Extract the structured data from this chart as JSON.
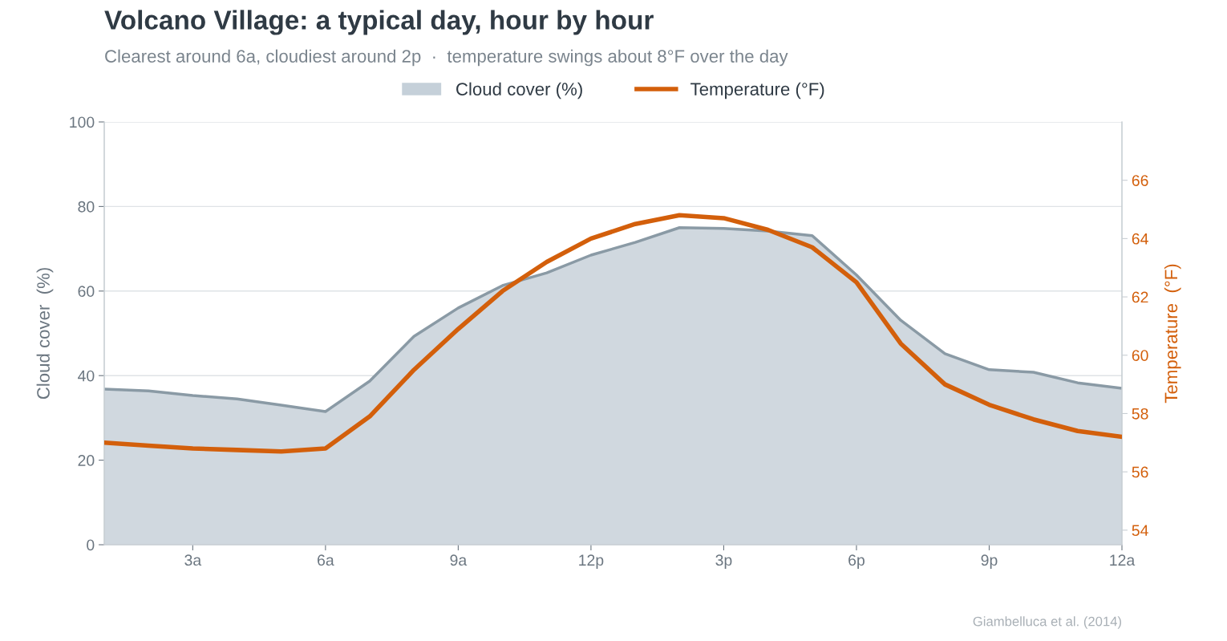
{
  "chart_data": {
    "type": "line",
    "title": "Volcano Village: a typical day, hour by hour",
    "subtitle": "Clearest around 6a, cloudiest around 2p  ·  temperature swings about 8°F over the day",
    "ylabel": "Cloud cover  (%)",
    "y2label": "Temperature  (°F)",
    "categories": [
      null,
      null,
      "3a",
      null,
      null,
      "6a",
      null,
      null,
      "9a",
      null,
      null,
      "12p",
      null,
      null,
      "3p",
      null,
      null,
      "6p",
      null,
      null,
      "9p",
      null,
      null,
      "12a"
    ],
    "series": [
      {
        "name": "Cloud cover (%)",
        "type": "area",
        "color": "#8a9aa5",
        "values": [
          36.8,
          36.4,
          35.3,
          34.5,
          33.0,
          31.5,
          38.7,
          49.3,
          56.0,
          61.3,
          64.3,
          68.5,
          71.5,
          75.0,
          74.8,
          74.2,
          73.1,
          63.8,
          53.1,
          45.2,
          41.4,
          40.8,
          38.3,
          37.0
        ]
      },
      {
        "name": "Temperature (°F)",
        "axis": "y2",
        "color": "#d35f0b",
        "values": [
          57.0,
          56.9,
          56.8,
          56.75,
          56.7,
          56.8,
          57.9,
          59.5,
          60.9,
          62.2,
          63.2,
          64.0,
          64.5,
          64.8,
          64.7,
          64.3,
          63.7,
          62.5,
          60.4,
          59.0,
          58.3,
          57.8,
          57.4,
          57.2
        ]
      }
    ],
    "ylim": [
      0,
      100
    ],
    "yticks": [
      0,
      20,
      40,
      60,
      80,
      100
    ],
    "y2lim": [
      53.5,
      68
    ],
    "y2ticks": [
      54,
      56,
      58,
      60,
      62,
      64,
      66
    ],
    "grid": "y",
    "legend": "top",
    "marker": "none",
    "line_style": "solid",
    "annotations": [
      "Giambelluca et al. (2014)"
    ]
  }
}
